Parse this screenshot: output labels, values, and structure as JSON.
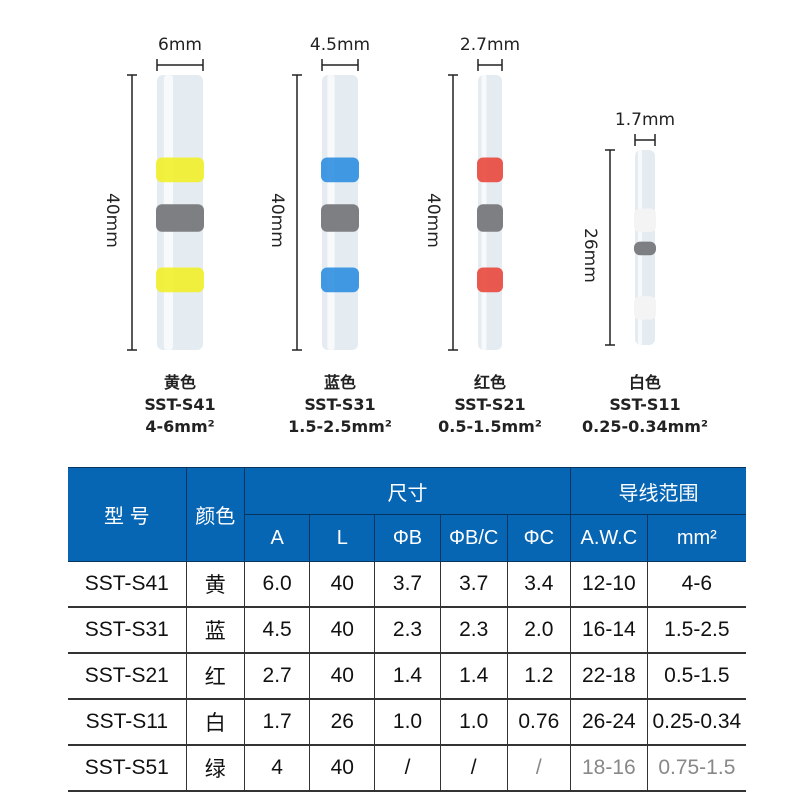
{
  "products": [
    {
      "width": "6mm",
      "length": "40mm",
      "color_name": "黄色",
      "model": "SST-S41",
      "range": "4-6mm²",
      "band": "#f2ef2a",
      "tube_w": 1.0
    },
    {
      "width": "4.5mm",
      "length": "40mm",
      "color_name": "蓝色",
      "model": "SST-S31",
      "range": "1.5-2.5mm²",
      "band": "#2f8fe0",
      "tube_w": 0.75
    },
    {
      "width": "2.7mm",
      "length": "40mm",
      "color_name": "红色",
      "model": "SST-S21",
      "range": "0.5-1.5mm²",
      "band": "#e8483c",
      "tube_w": 0.45
    },
    {
      "width": "1.7mm",
      "length": "26mm",
      "color_name": "白色",
      "model": "SST-S11",
      "range": "0.25-0.34mm²",
      "band": "#f4f4f4",
      "tube_w": 0.35
    }
  ],
  "table": {
    "header": {
      "model": "型 号",
      "color": "颜色",
      "size": "尺寸",
      "wire_range": "导线范围",
      "cols": [
        "A",
        "L",
        "ΦB",
        "ΦB/C",
        "ΦC",
        "A.W.C",
        "mm²"
      ]
    },
    "rows": [
      [
        "SST-S41",
        "黄",
        "6.0",
        "40",
        "3.7",
        "3.7",
        "3.4",
        "12-10",
        "4-6"
      ],
      [
        "SST-S31",
        "蓝",
        "4.5",
        "40",
        "2.3",
        "2.3",
        "2.0",
        "16-14",
        "1.5-2.5"
      ],
      [
        "SST-S21",
        "红",
        "2.7",
        "40",
        "1.4",
        "1.4",
        "1.2",
        "22-18",
        "0.5-1.5"
      ],
      [
        "SST-S11",
        "白",
        "1.7",
        "26",
        "1.0",
        "1.0",
        "0.76",
        "26-24",
        "0.25-0.34"
      ],
      [
        "SST-S51",
        "绿",
        "4",
        "40",
        "/",
        "/",
        "/",
        "18-16",
        "0.75-1.5"
      ]
    ]
  },
  "colors": {
    "header_bg": "#0766b4"
  }
}
